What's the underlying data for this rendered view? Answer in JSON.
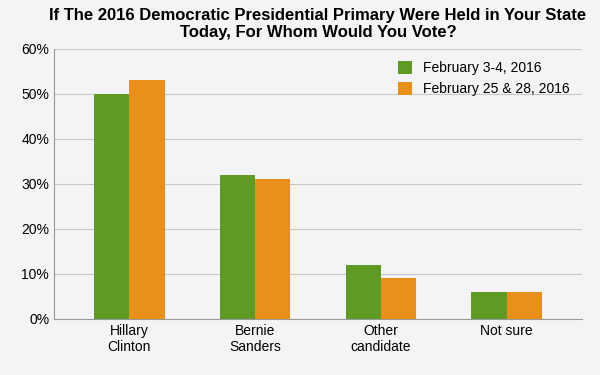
{
  "chart_data": {
    "type": "bar",
    "title": "If The 2016 Democratic Presidential Primary Were Held in Your State Today, For Whom Would You Vote?",
    "categories": [
      "Hillary Clinton",
      "Bernie Sanders",
      "Other candidate",
      "Not sure"
    ],
    "series": [
      {
        "name": "February 3-4, 2016",
        "color": "#5f9a24",
        "values": [
          50,
          32,
          12,
          6
        ]
      },
      {
        "name": "February 25 & 28, 2016",
        "color": "#e8901a",
        "values": [
          53,
          31,
          9,
          6
        ]
      }
    ],
    "ylim": [
      0,
      60
    ],
    "yticks": [
      {
        "value": 0,
        "label": "0%"
      },
      {
        "value": 10,
        "label": "10%"
      },
      {
        "value": 20,
        "label": "20%"
      },
      {
        "value": 30,
        "label": "30%"
      },
      {
        "value": 40,
        "label": "40%"
      },
      {
        "value": 50,
        "label": "50%"
      },
      {
        "value": 60,
        "label": "60%"
      }
    ],
    "grid": true,
    "legend": "upper right"
  }
}
